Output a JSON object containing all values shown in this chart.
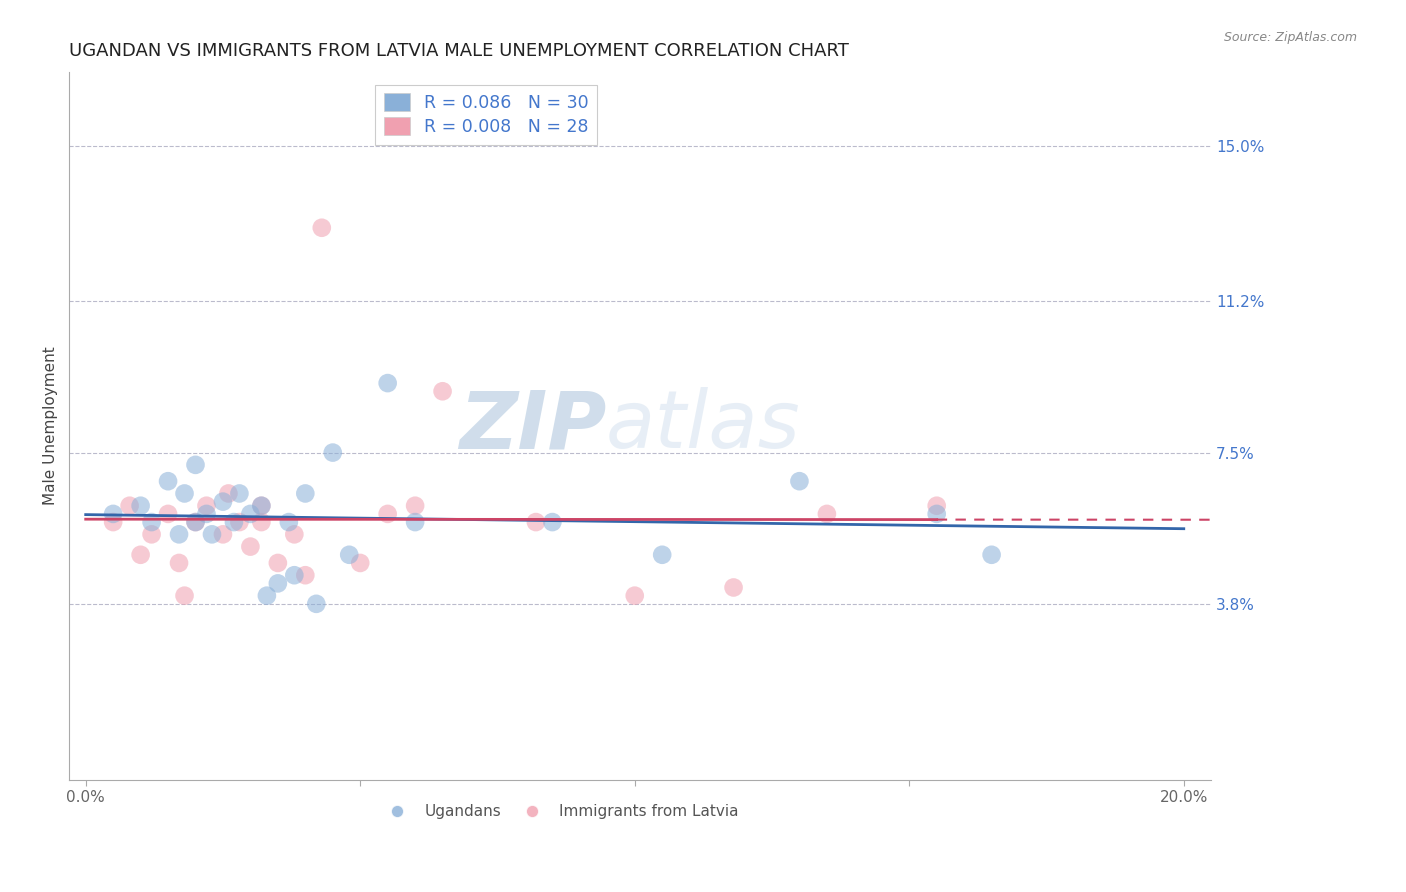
{
  "title": "UGANDAN VS IMMIGRANTS FROM LATVIA MALE UNEMPLOYMENT CORRELATION CHART",
  "source_text": "Source: ZipAtlas.com",
  "ylabel": "Male Unemployment",
  "watermark_zip": "ZIP",
  "watermark_atlas": "atlas",
  "xlim": [
    -0.003,
    0.205
  ],
  "ylim": [
    -0.005,
    0.168
  ],
  "yticks": [
    0.038,
    0.075,
    0.112,
    0.15
  ],
  "ytick_labels": [
    "3.8%",
    "7.5%",
    "11.2%",
    "15.0%"
  ],
  "xticks": [
    0.0,
    0.05,
    0.1,
    0.15,
    0.2
  ],
  "xtick_labels": [
    "0.0%",
    "",
    "",
    "",
    "20.0%"
  ],
  "legend_entry_blue": "R = 0.086   N = 30",
  "legend_entry_pink": "R = 0.008   N = 28",
  "legend_labels_bottom": [
    "Ugandans",
    "Immigrants from Latvia"
  ],
  "ugandan_x": [
    0.005,
    0.01,
    0.012,
    0.015,
    0.017,
    0.018,
    0.02,
    0.02,
    0.022,
    0.023,
    0.025,
    0.027,
    0.028,
    0.03,
    0.032,
    0.033,
    0.035,
    0.037,
    0.038,
    0.04,
    0.042,
    0.045,
    0.048,
    0.055,
    0.06,
    0.085,
    0.105,
    0.13,
    0.155,
    0.165
  ],
  "ugandan_y": [
    0.06,
    0.062,
    0.058,
    0.068,
    0.055,
    0.065,
    0.058,
    0.072,
    0.06,
    0.055,
    0.063,
    0.058,
    0.065,
    0.06,
    0.062,
    0.04,
    0.043,
    0.058,
    0.045,
    0.065,
    0.038,
    0.075,
    0.05,
    0.092,
    0.058,
    0.058,
    0.05,
    0.068,
    0.06,
    0.05
  ],
  "latvia_x": [
    0.005,
    0.008,
    0.01,
    0.012,
    0.015,
    0.017,
    0.018,
    0.02,
    0.022,
    0.025,
    0.026,
    0.028,
    0.03,
    0.032,
    0.032,
    0.035,
    0.038,
    0.04,
    0.043,
    0.05,
    0.055,
    0.06,
    0.065,
    0.082,
    0.1,
    0.118,
    0.135,
    0.155
  ],
  "latvia_y": [
    0.058,
    0.062,
    0.05,
    0.055,
    0.06,
    0.048,
    0.04,
    0.058,
    0.062,
    0.055,
    0.065,
    0.058,
    0.052,
    0.058,
    0.062,
    0.048,
    0.055,
    0.045,
    0.13,
    0.048,
    0.06,
    0.062,
    0.09,
    0.058,
    0.04,
    0.042,
    0.06,
    0.062
  ],
  "blue_color": "#8ab0d8",
  "pink_color": "#f0a0b0",
  "blue_line_color": "#3366aa",
  "pink_line_color": "#cc4466",
  "background_color": "#ffffff",
  "grid_color": "#bbbbcc",
  "title_color": "#222222",
  "axis_label_color": "#444444",
  "right_tick_color": "#4477cc",
  "title_fontsize": 13,
  "axis_label_fontsize": 11,
  "tick_fontsize": 11,
  "marker_size": 180,
  "marker_alpha": 0.55
}
